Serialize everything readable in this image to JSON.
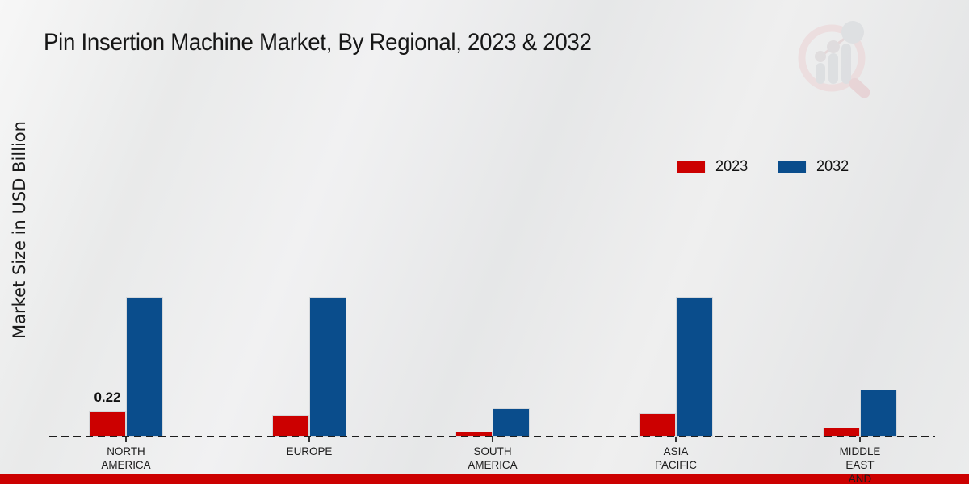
{
  "chart_data": {
    "type": "bar",
    "title": "Pin Insertion Machine Market, By Regional, 2023 & 2032",
    "ylabel": "Market Size in USD Billion",
    "xlabel": "",
    "categories": [
      "NORTH AMERICA",
      "EUROPE",
      "SOUTH AMERICA",
      "ASIA PACIFIC",
      "MIDDLE EAST AND"
    ],
    "category_label_lines": [
      [
        "NORTH",
        "AMERICA"
      ],
      [
        "EUROPE"
      ],
      [
        "SOUTH",
        "AMERICA"
      ],
      [
        "ASIA",
        "PACIFIC"
      ],
      [
        "MIDDLE",
        "EAST",
        "AND"
      ]
    ],
    "series": [
      {
        "name": "2023",
        "color": "#cc0000",
        "values": [
          0.22,
          0.19,
          0.05,
          0.21,
          0.08
        ]
      },
      {
        "name": "2032",
        "color": "#0a4d8c",
        "values": [
          1.21,
          1.21,
          0.25,
          1.21,
          0.41
        ]
      }
    ],
    "annotations": [
      {
        "series_index": 0,
        "category_index": 0,
        "text": "0.22"
      }
    ],
    "ylim": [
      0,
      1.4
    ],
    "grid": false,
    "legend_position": "upper right",
    "baseline_style": "dashed"
  },
  "watermark": {
    "icon": "magnifier-bar-chart-logo"
  },
  "footer_bar": {
    "color": "#cc0000"
  }
}
